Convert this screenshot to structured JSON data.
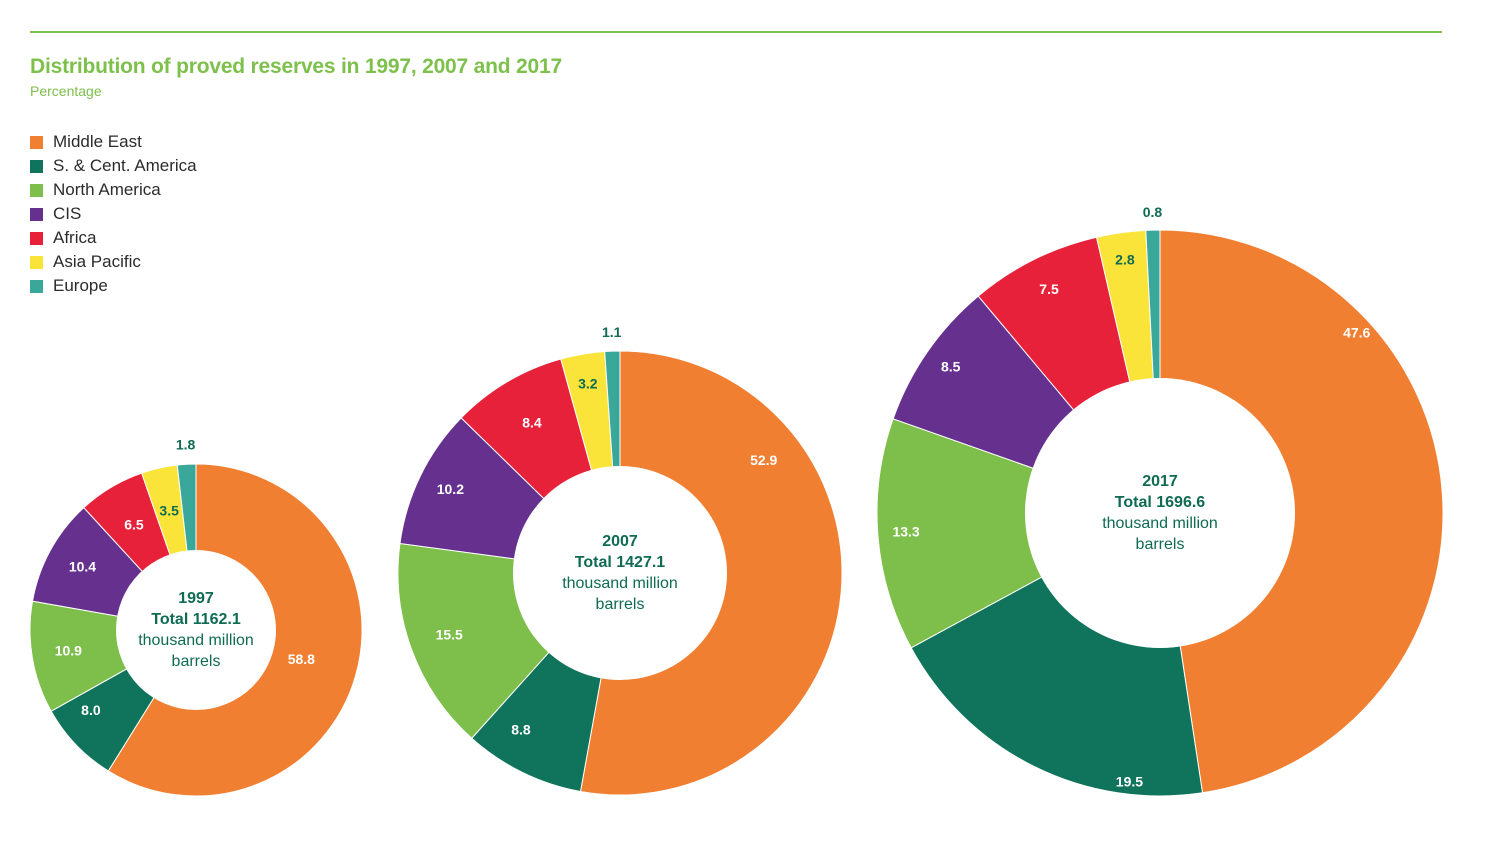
{
  "header": {
    "title": "Distribution of proved reserves in 1997, 2007 and 2017",
    "subtitle": "Percentage"
  },
  "legend": [
    {
      "label": "Middle East",
      "color": "#f07f31"
    },
    {
      "label": "S. & Cent. America",
      "color": "#10735b"
    },
    {
      "label": "North America",
      "color": "#7dbf4a"
    },
    {
      "label": "CIS",
      "color": "#66308f"
    },
    {
      "label": "Africa",
      "color": "#e8213a"
    },
    {
      "label": "Asia Pacific",
      "color": "#fae43a"
    },
    {
      "label": "Europe",
      "color": "#3aa79b"
    }
  ],
  "chart_data": [
    {
      "type": "pie",
      "year": "1997",
      "total": "Total 1162.1",
      "unit_line1": "thousand million",
      "unit_line2": "barrels",
      "categories": [
        "Middle East",
        "S. & Cent. America",
        "North America",
        "CIS",
        "Africa",
        "Asia Pacific",
        "Europe"
      ],
      "values": [
        58.8,
        8.0,
        10.9,
        10.4,
        6.5,
        3.5,
        1.8
      ],
      "labels": [
        "58.8",
        "8.0",
        "10.9",
        "10.4",
        "6.5",
        "3.5",
        "1.8"
      ]
    },
    {
      "type": "pie",
      "year": "2007",
      "total": "Total 1427.1",
      "unit_line1": "thousand million",
      "unit_line2": "barrels",
      "categories": [
        "Middle East",
        "S. & Cent. America",
        "North America",
        "CIS",
        "Africa",
        "Asia Pacific",
        "Europe"
      ],
      "values": [
        52.9,
        8.8,
        15.5,
        10.2,
        8.4,
        3.2,
        1.1
      ],
      "labels": [
        "52.9",
        "8.8",
        "15.5",
        "10.2",
        "8.4",
        "3.2",
        "1.1"
      ]
    },
    {
      "type": "pie",
      "year": "2017",
      "total": "Total 1696.6",
      "unit_line1": "thousand million",
      "unit_line2": "barrels",
      "categories": [
        "Middle East",
        "S. & Cent. America",
        "North America",
        "CIS",
        "Africa",
        "Asia Pacific",
        "Europe"
      ],
      "values": [
        47.6,
        19.5,
        13.3,
        8.5,
        7.5,
        2.8,
        0.8
      ],
      "labels": [
        "47.6",
        "19.5",
        "13.3",
        "8.5",
        "7.5",
        "2.8",
        "0.8"
      ]
    }
  ]
}
